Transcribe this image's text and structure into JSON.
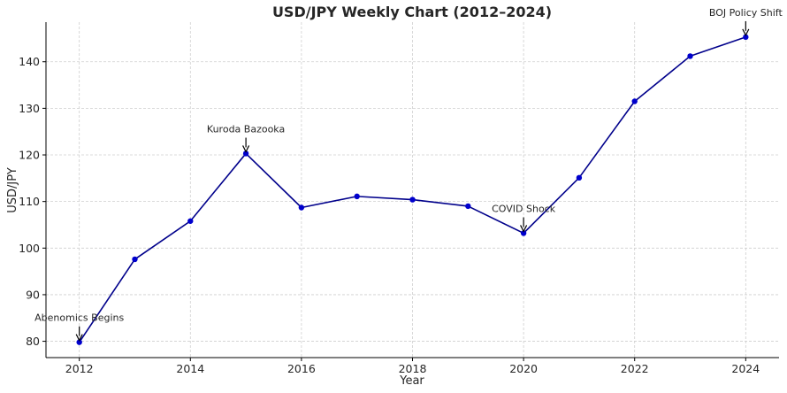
{
  "chart_data": {
    "type": "line",
    "title": "USD/JPY Weekly Chart (2012–2024)",
    "xlabel": "Year",
    "ylabel": "USD/JPY",
    "x": [
      2012,
      2013,
      2014,
      2015,
      2016,
      2017,
      2018,
      2019,
      2020,
      2021,
      2022,
      2023,
      2024
    ],
    "series": [
      {
        "values": [
          79.8,
          97.6,
          105.8,
          120.3,
          108.7,
          111.1,
          110.4,
          109.0,
          103.2,
          115.1,
          131.5,
          141.2,
          145.3
        ]
      }
    ],
    "xlim": [
      2011.4,
      2024.6
    ],
    "ylim": [
      76.5,
      148.5
    ],
    "xticks": [
      2012,
      2014,
      2016,
      2018,
      2020,
      2022,
      2024
    ],
    "yticks": [
      80,
      90,
      100,
      110,
      120,
      130,
      140
    ],
    "grid": true,
    "line_color": "#00008b",
    "marker_color": "#0000cd",
    "annotations": [
      {
        "text": "Abenomics Begins",
        "x": 2012,
        "y": 79.8,
        "text_x": 2012,
        "text_y": 85.1
      },
      {
        "text": "Kuroda Bazooka",
        "x": 2015,
        "y": 120.3,
        "text_x": 2015,
        "text_y": 125.6
      },
      {
        "text": "COVID Shock",
        "x": 2020,
        "y": 103.2,
        "text_x": 2020,
        "text_y": 108.5
      },
      {
        "text": "BOJ Policy Shift",
        "x": 2024,
        "y": 145.3,
        "text_x": 2024,
        "text_y": 150.6
      }
    ]
  }
}
